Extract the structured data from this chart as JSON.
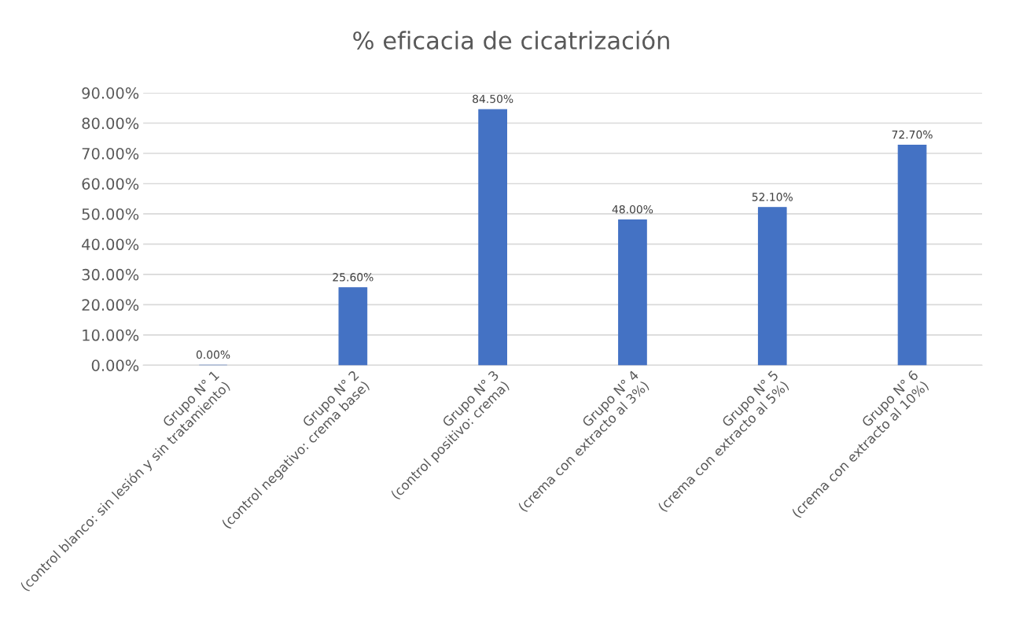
{
  "chart_data": {
    "type": "bar",
    "title": "% eficacia de cicatrización",
    "categories": [
      "Grupo N° 1\n(control blanco: sin lesión y sin tratamiento)",
      "Grupo N° 2\n(control negativo: crema base)",
      "Grupo N° 3\n(control positivo: crema)",
      "Grupo N° 4\n(crema con extracto al 3%)",
      "Grupo N° 5\n(crema con extracto al 5%)",
      "Grupo N° 6\n(crema con extracto al 10%)"
    ],
    "values": [
      0,
      25.6,
      84.5,
      48.0,
      52.1,
      72.7
    ],
    "value_labels": [
      "0.00%",
      "25.60%",
      "84.50%",
      "48.00%",
      "52.10%",
      "72.70%"
    ],
    "color": "#4472c4",
    "ylim": [
      0,
      90
    ],
    "yticks": [
      {
        "value": 0,
        "label": "0.00%"
      },
      {
        "value": 10,
        "label": "10.00%"
      },
      {
        "value": 20,
        "label": "20.00%"
      },
      {
        "value": 30,
        "label": "30.00%"
      },
      {
        "value": 40,
        "label": "40.00%"
      },
      {
        "value": 50,
        "label": "50.00%"
      },
      {
        "value": 60,
        "label": "60.00%"
      },
      {
        "value": 70,
        "label": "70.00%"
      },
      {
        "value": 80,
        "label": "80.00%"
      },
      {
        "value": 90,
        "label": "90.00%"
      }
    ],
    "grid": "y"
  }
}
